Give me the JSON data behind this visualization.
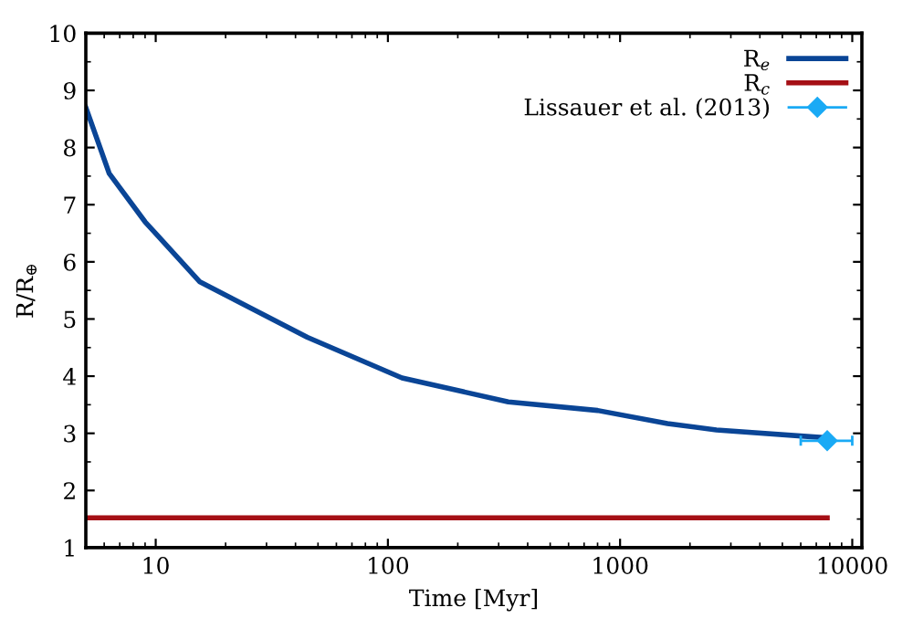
{
  "chart_data": {
    "type": "line",
    "xlabel": "Time [Myr]",
    "ylabel": "R/R$_{⊕}$",
    "log": "x",
    "xlim": [
      5,
      11000
    ],
    "xticks": [
      10,
      100,
      1000,
      10000
    ],
    "ylim": [
      1,
      10
    ],
    "yticks": [
      1,
      2,
      3,
      4,
      5,
      6,
      7,
      8,
      9,
      10
    ],
    "grid": false,
    "legend": "top right",
    "series": [
      {
        "name": "R$_{e}$",
        "color": "#0a4596",
        "x": [
          5,
          6.3,
          9,
          15.5,
          45,
          115,
          330,
          800,
          1600,
          2600,
          7800
        ],
        "values": [
          8.7,
          7.55,
          6.7,
          5.65,
          4.68,
          3.97,
          3.55,
          3.4,
          3.17,
          3.06,
          2.92
        ]
      },
      {
        "name": "R$_{c}$",
        "color": "#a50f15",
        "x": [
          5,
          7800
        ],
        "values": [
          1.52,
          1.52
        ]
      },
      {
        "name": "Lissauer et al. (2013)",
        "type": "scatter",
        "marker": "diamond",
        "color": "#1aaaf5",
        "x": [
          7800
        ],
        "values": [
          2.87
        ],
        "xerrors": [
          [
            6000,
            10000
          ]
        ]
      }
    ]
  }
}
